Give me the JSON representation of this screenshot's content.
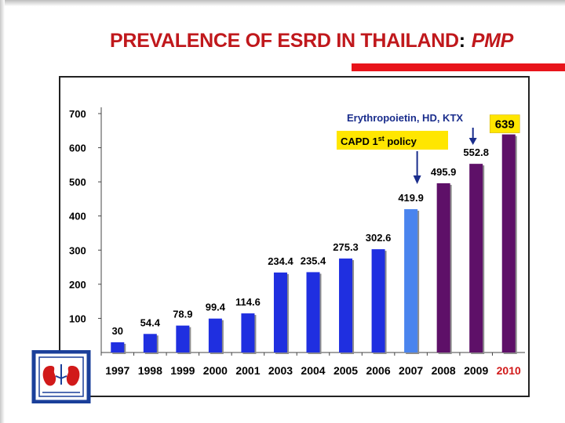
{
  "slide": {
    "title_main": "PREVALENCE OF ESRD IN THAILAND",
    "title_colon": ":",
    "title_emphasis": "PMP",
    "title_color": "#c0181c",
    "accent_bar_color": "#e8141b"
  },
  "logo": {
    "icon": "kidney-society-seal-icon",
    "colors": {
      "ring": "#1a3f9a",
      "kidney": "#d11a1a"
    }
  },
  "chart_data": {
    "type": "bar",
    "categories": [
      "1997",
      "1998",
      "1999",
      "2000",
      "2001",
      "2003",
      "2004",
      "2005",
      "2006",
      "2007",
      "2008",
      "2009",
      "2010"
    ],
    "values": [
      30,
      54.4,
      78.9,
      99.4,
      114.6,
      234.4,
      235.4,
      275.3,
      302.6,
      419.9,
      495.9,
      552.8,
      639
    ],
    "value_labels": [
      "30",
      "54.4",
      "78.9",
      "99.4",
      "114.6",
      "234.4",
      "235.4",
      "275.3",
      "302.6",
      "419.9",
      "495.9",
      "552.8",
      "639"
    ],
    "bar_colors": [
      "#1f2fe0",
      "#1f2fe0",
      "#1f2fe0",
      "#1f2fe0",
      "#1f2fe0",
      "#1f2fe0",
      "#1f2fe0",
      "#1f2fe0",
      "#1f2fe0",
      "#4a84ee",
      "#5e1068",
      "#5e1068",
      "#5e1068"
    ],
    "y_ticks": [
      100,
      200,
      300,
      400,
      500,
      600,
      700
    ],
    "ylim": [
      0,
      700
    ],
    "highlighted_category": "2010",
    "highlighted_category_color": "#d11a1a",
    "highlighted_value_label_bg": "#ffe600",
    "grid": false,
    "annotations": [
      {
        "text": "Erythropoietin, HD, KTX",
        "color": "#1a2d8c",
        "arrow_to": "2009"
      },
      {
        "text": "CAPD 1st policy",
        "text_main": "CAPD 1",
        "text_sup": "st",
        "text_tail": " policy",
        "background": "#ffe600",
        "color": "#000000",
        "arrow_to": "2007"
      }
    ]
  }
}
